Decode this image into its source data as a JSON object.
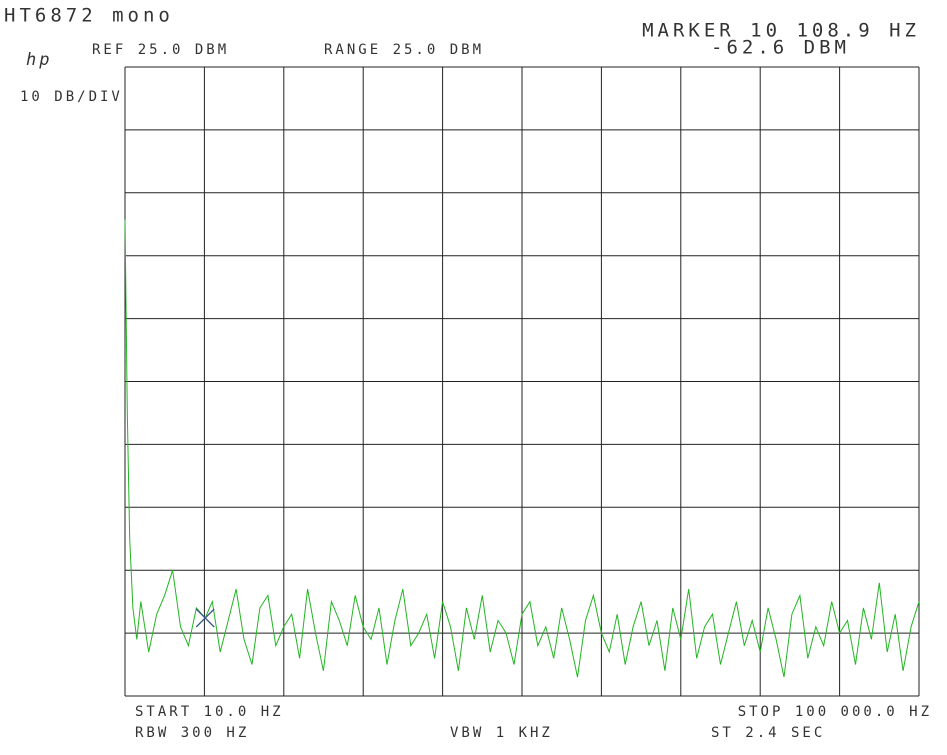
{
  "chart_data": {
    "type": "line",
    "title": "HT6872 mono",
    "logo": "hp",
    "ref_label": "REF 25.0 DBM",
    "range_label": "RANGE 25.0 DBM",
    "scale_label": "10 DB/DIV",
    "start_label": "START 10.0 HZ",
    "stop_label": "STOP 100 000.0 HZ",
    "rbw_label": "RBW 300 HZ",
    "vbw_label": "VBW 1 KHZ",
    "sweep_label": "ST 2.4 SEC",
    "marker": {
      "x": 10108.9,
      "y": -62.6,
      "label": "MARKER 10 108.9 HZ",
      "value_label": "-62.6 DBM",
      "color": "#3a5a8a"
    },
    "xlim": [
      10,
      100000
    ],
    "ylim": [
      -75,
      25
    ],
    "xticks": [
      10,
      10009,
      20008,
      30007,
      40006,
      50005,
      60004,
      70003,
      80002,
      90001,
      100000
    ],
    "yticks": [
      -75,
      -65,
      -55,
      -45,
      -35,
      -25,
      -15,
      -5,
      5,
      15,
      25
    ],
    "grid": true,
    "x": [
      10,
      300,
      600,
      1000,
      1500,
      2000,
      3000,
      4000,
      5000,
      6000,
      7000,
      8000,
      9000,
      10108.9,
      11000,
      12000,
      13000,
      14000,
      15000,
      16000,
      17000,
      18000,
      19000,
      20000,
      21000,
      22000,
      23000,
      24000,
      25000,
      26000,
      27000,
      28000,
      29000,
      30000,
      31000,
      32000,
      33000,
      34000,
      35000,
      36000,
      37000,
      38000,
      39000,
      40000,
      41000,
      42000,
      43000,
      44000,
      45000,
      46000,
      47000,
      48000,
      49000,
      50000,
      51000,
      52000,
      53000,
      54000,
      55000,
      56000,
      57000,
      58000,
      59000,
      60000,
      61000,
      62000,
      63000,
      64000,
      65000,
      66000,
      67000,
      68000,
      69000,
      70000,
      71000,
      72000,
      73000,
      74000,
      75000,
      76000,
      77000,
      78000,
      79000,
      80000,
      81000,
      82000,
      83000,
      84000,
      85000,
      86000,
      87000,
      88000,
      89000,
      90000,
      91000,
      92000,
      93000,
      94000,
      95000,
      96000,
      97000,
      98000,
      99000,
      100000
    ],
    "series": [
      {
        "color": "#22b522",
        "values": [
          0.7,
          -30,
          -50,
          -61,
          -66,
          -60,
          -68,
          -62,
          -59,
          -55,
          -64,
          -67,
          -61,
          -62.6,
          -60,
          -68,
          -63,
          -58,
          -66,
          -70,
          -61,
          -59,
          -67,
          -64,
          -62,
          -69,
          -58,
          -65,
          -71,
          -60,
          -63,
          -67,
          -59,
          -64,
          -66,
          -61,
          -70,
          -63,
          -58,
          -67,
          -65,
          -62,
          -69,
          -60,
          -64,
          -71,
          -61,
          -66,
          -59,
          -68,
          -63,
          -65,
          -70,
          -62,
          -60,
          -67,
          -64,
          -69,
          -61,
          -66,
          -72,
          -63,
          -59,
          -65,
          -68,
          -62,
          -70,
          -64,
          -60,
          -67,
          -63,
          -71,
          -61,
          -66,
          -58,
          -69,
          -64,
          -62,
          -70,
          -65,
          -60,
          -67,
          -63,
          -68,
          -61,
          -66,
          -72,
          -62,
          -59,
          -69,
          -64,
          -67,
          -60,
          -65,
          -63,
          -70,
          -61,
          -66,
          -57,
          -68,
          -62,
          -71,
          -64,
          -60
        ]
      }
    ]
  }
}
